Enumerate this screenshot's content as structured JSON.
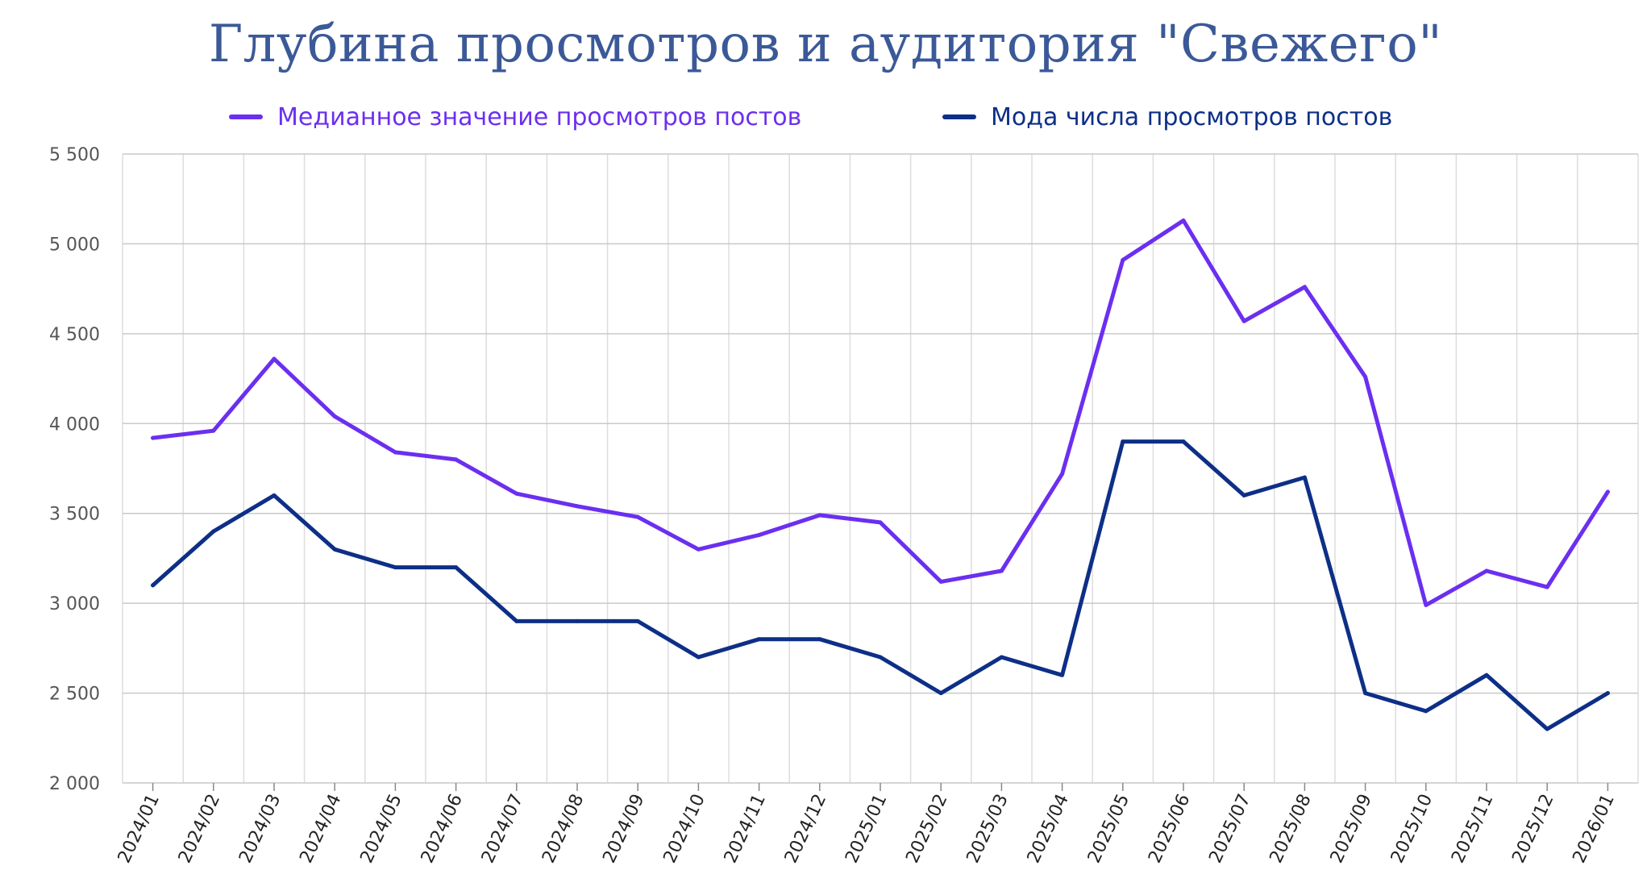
{
  "chart_data": {
    "type": "line",
    "title": "Глубина просмотров и аудитория \"Свежего\"",
    "xlabel": "",
    "ylabel": "",
    "ylim": [
      2000,
      5500
    ],
    "yticks": [
      2000,
      2500,
      3000,
      3500,
      4000,
      4500,
      5000,
      5500
    ],
    "ytick_labels": [
      "2 000",
      "2 500",
      "3 000",
      "3 500",
      "4 000",
      "4 500",
      "5 000",
      "5 500"
    ],
    "grid": true,
    "legend_position": "top-center",
    "categories": [
      "2024/01",
      "2024/02",
      "2024/03",
      "2024/04",
      "2024/05",
      "2024/06",
      "2024/07",
      "2024/08",
      "2024/09",
      "2024/10",
      "2024/11",
      "2024/12",
      "2025/01",
      "2025/02",
      "2025/03",
      "2025/04",
      "2025/05",
      "2025/06",
      "2025/07",
      "2025/08",
      "2025/09",
      "2025/10",
      "2025/11",
      "2025/12",
      "2026/01"
    ],
    "series": [
      {
        "name": "Медианное значение просмотров постов",
        "color": "#6b2ff0",
        "values": [
          3920,
          3960,
          4360,
          4040,
          3840,
          3800,
          3610,
          3540,
          3480,
          3300,
          3380,
          3490,
          3450,
          3120,
          3180,
          3720,
          4910,
          5130,
          4570,
          4760,
          4260,
          2990,
          3180,
          3090,
          3620
        ]
      },
      {
        "name": "Мода числа просмотров постов",
        "color": "#0d2f86",
        "values": [
          3100,
          3400,
          3600,
          3300,
          3200,
          3200,
          2900,
          2900,
          2900,
          2700,
          2800,
          2800,
          2700,
          2500,
          2700,
          2600,
          3900,
          3900,
          3600,
          3700,
          2500,
          2400,
          2600,
          2300,
          2500
        ]
      }
    ]
  }
}
